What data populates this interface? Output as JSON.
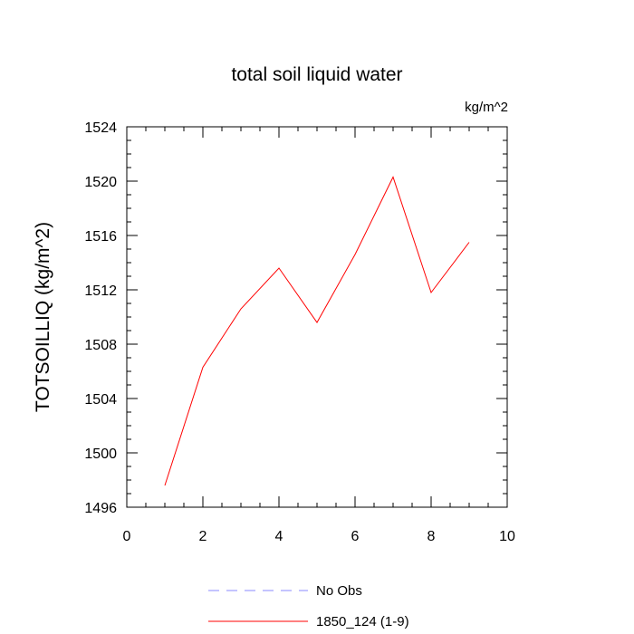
{
  "chart_data": {
    "type": "line",
    "title": "total soil liquid water",
    "units_label": "kg/m^2",
    "xlabel": "",
    "ylabel": "TOTSOILLIQ  (kg/m^2)",
    "xlim": [
      0,
      10
    ],
    "ylim": [
      1496,
      1524
    ],
    "x_ticks": [
      0,
      2,
      4,
      6,
      8,
      10
    ],
    "x_tick_labels": [
      "0",
      "2",
      "4",
      "6",
      "8",
      "10"
    ],
    "y_ticks": [
      1496,
      1500,
      1504,
      1508,
      1512,
      1516,
      1520,
      1524
    ],
    "y_tick_labels": [
      "1496",
      "1500",
      "1504",
      "1508",
      "1512",
      "1516",
      "1520",
      "1524"
    ],
    "grid": false,
    "legend_position": "bottom",
    "series": [
      {
        "name": "1850_124 (1-9)",
        "color": "#ff0000",
        "style": "solid",
        "x": [
          1,
          2,
          3,
          4,
          5,
          6,
          7,
          8,
          9
        ],
        "y": [
          1497.6,
          1506.3,
          1510.6,
          1513.6,
          1509.6,
          1514.6,
          1520.3,
          1511.8,
          1515.5
        ]
      }
    ],
    "legend": [
      {
        "label": "No Obs",
        "color": "#8888ff",
        "style": "dashed"
      },
      {
        "label": "1850_124 (1-9)",
        "color": "#ff0000",
        "style": "solid"
      }
    ]
  }
}
